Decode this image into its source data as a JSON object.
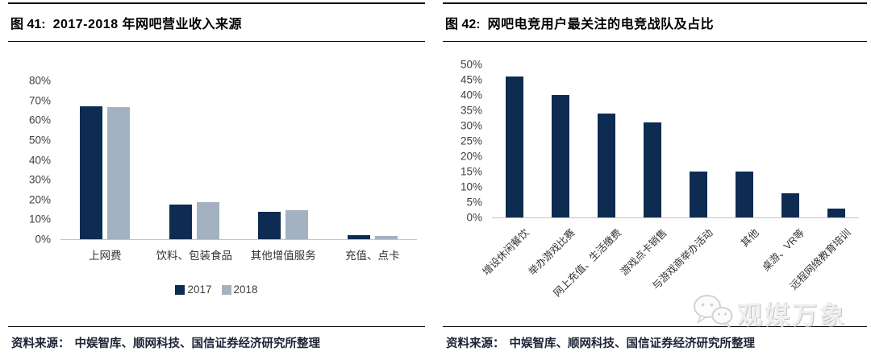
{
  "colors": {
    "navy": "#0e2b52",
    "gray_blue": "#a3b1c1",
    "axis_line": "#c4c4c4"
  },
  "panels": [
    {
      "figure_label": "图 41:",
      "title": "2017-2018 年网吧营业收入来源",
      "source_label": "资料来源：",
      "source_text": "中娱智库、顺网科技、国信证券经济研究所整理"
    },
    {
      "figure_label": "图 42:",
      "title": "网吧电竞用户最关注的电竞战队及占比",
      "source_label": "资料来源：",
      "source_text": "中娱智库、顺网科技、国信证券经济研究所整理"
    }
  ],
  "chart_data": [
    {
      "type": "bar",
      "title": "2017-2018 年网吧营业收入来源",
      "categories": [
        "上网费",
        "饮料、包装食品",
        "其他增值服务",
        "充值、点卡"
      ],
      "series": [
        {
          "name": "2017",
          "color": "#0e2b52",
          "values": [
            67,
            17.5,
            14,
            2
          ]
        },
        {
          "name": "2018",
          "color": "#a3b1c1",
          "values": [
            66.5,
            18.5,
            14.5,
            1.5
          ]
        }
      ],
      "ylim": [
        0,
        80
      ],
      "ytick_values": [
        0,
        10,
        20,
        30,
        40,
        50,
        60,
        70,
        80
      ],
      "ytick_labels": [
        "0%",
        "10%",
        "20%",
        "30%",
        "40%",
        "50%",
        "60%",
        "70%",
        "80%"
      ],
      "grid": false,
      "legend_position": "bottom",
      "xlabel_rotation": 0
    },
    {
      "type": "bar",
      "title": "网吧电竞用户最关注的电竞战队及占比",
      "categories": [
        "增设休闲餐饮",
        "举办游戏比赛",
        "网上充值、生活缴费",
        "游戏点卡销售",
        "与游戏商举办活动",
        "其他",
        "桌游、VR等",
        "远程网络教育培训"
      ],
      "values": [
        46,
        40,
        34,
        31,
        15,
        15,
        8,
        3
      ],
      "bar_color": "#0e2b52",
      "ylim": [
        0,
        50
      ],
      "ytick_values": [
        0,
        5,
        10,
        15,
        20,
        25,
        30,
        35,
        40,
        45,
        50
      ],
      "ytick_labels": [
        "0%",
        "5%",
        "10%",
        "15%",
        "20%",
        "25%",
        "30%",
        "35%",
        "40%",
        "45%",
        "50%"
      ],
      "grid": false,
      "legend_position": "none",
      "xlabel_rotation": -45
    }
  ],
  "watermark": {
    "text": "观媒万象",
    "icon": "wechat-logo"
  }
}
